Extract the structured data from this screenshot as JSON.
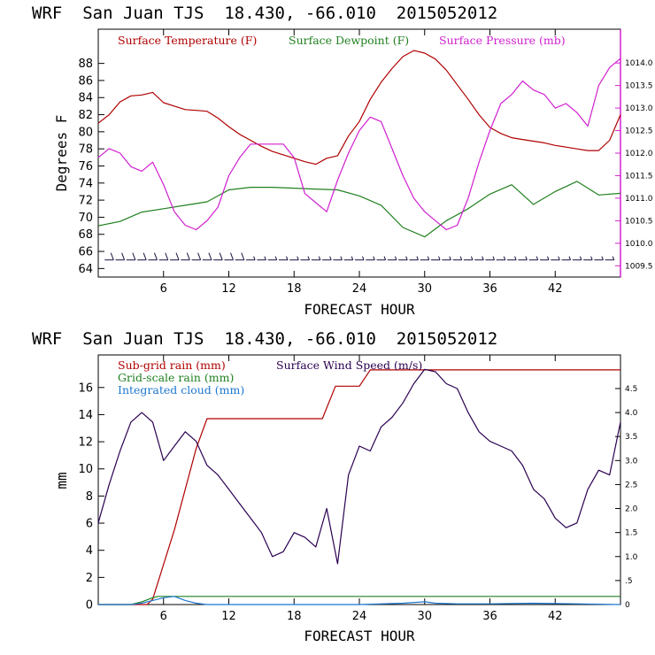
{
  "colors": {
    "temperature": "#b00000",
    "dewpoint": "#208020",
    "pressure": "#d020d0",
    "subgrid_rain": "#b00000",
    "grid_rain": "#208020",
    "cloud": "#1e78d0",
    "wind": "#2a0050",
    "barbs": "#1a1040",
    "axis": "#000000"
  },
  "chart_data": [
    {
      "type": "line",
      "title": "WRF  San Juan TJS  18.430, -66.010  2015052012",
      "xlabel": "FORECAST HOUR",
      "ylabel": "Degrees F",
      "xlim": [
        0,
        48
      ],
      "xticks": [
        6,
        12,
        18,
        24,
        30,
        36,
        42
      ],
      "xtick_labels": [
        "6",
        "12",
        "18",
        "24",
        "30",
        "36",
        "42"
      ],
      "ylim": [
        63,
        92
      ],
      "yticks": [
        64,
        66,
        68,
        70,
        72,
        74,
        76,
        78,
        80,
        82,
        84,
        86,
        88
      ],
      "ytick_labels": [
        "64",
        "66",
        "68",
        "70",
        "72",
        "74",
        "76",
        "78",
        "80",
        "82",
        "84",
        "86",
        "88"
      ],
      "y2lim": [
        1009.25,
        1014.75
      ],
      "y2ticks": [
        1009.5,
        1010.0,
        1010.5,
        1011.0,
        1011.5,
        1012.0,
        1012.5,
        1013.0,
        1013.5,
        1014.0
      ],
      "y2tick_labels": [
        "1009.5",
        "1010.0",
        "1010.5",
        "1011.0",
        "1011.5",
        "1012.0",
        "1012.5",
        "1013.0",
        "1013.5",
        "1014.0"
      ],
      "legend": [
        "Surface Temperature (F)",
        "Surface Dewpoint (F)",
        "Surface Pressure (mb)"
      ],
      "series": [
        {
          "name": "Surface Temperature (F)",
          "axis": "left",
          "x": [
            0,
            1,
            2,
            3,
            4,
            5,
            6,
            7,
            8,
            9,
            10,
            11,
            12,
            13,
            14,
            15,
            16,
            17,
            18,
            19,
            20,
            21,
            22,
            23,
            24,
            25,
            26,
            27,
            28,
            29,
            30,
            31,
            32,
            33,
            34,
            35,
            36,
            37,
            38,
            39,
            40,
            41,
            42,
            43,
            44,
            45,
            46,
            47,
            48
          ],
          "values": [
            81,
            82,
            83.5,
            84.2,
            84.3,
            84.6,
            83.4,
            83,
            82.6,
            82.5,
            82.4,
            81.6,
            80.6,
            79.7,
            79,
            78.3,
            77.7,
            77.3,
            76.9,
            76.5,
            76.2,
            76.9,
            77.2,
            79.5,
            81.2,
            83.8,
            85.8,
            87.4,
            88.8,
            89.5,
            89.2,
            88.5,
            87.2,
            85.5,
            83.8,
            82,
            80.5,
            79.8,
            79.3,
            79.1,
            78.9,
            78.7,
            78.4,
            78.2,
            78.0,
            77.8,
            77.8,
            79,
            82
          ]
        },
        {
          "name": "Surface Dewpoint (F)",
          "axis": "left",
          "x": [
            0,
            2,
            4,
            6,
            8,
            10,
            12,
            14,
            16,
            18,
            20,
            22,
            24,
            26,
            28,
            30,
            32,
            34,
            36,
            38,
            40,
            42,
            44,
            46,
            48
          ],
          "values": [
            69,
            69.5,
            70.6,
            71,
            71.4,
            71.8,
            73.2,
            73.5,
            73.5,
            73.4,
            73.3,
            73.2,
            72.5,
            71.4,
            68.8,
            67.7,
            69.6,
            71,
            72.7,
            73.8,
            71.5,
            73,
            74.2,
            72.6,
            72.8
          ]
        },
        {
          "name": "Surface Pressure (mb)",
          "axis": "right",
          "x": [
            0,
            1,
            2,
            3,
            4,
            5,
            6,
            7,
            8,
            9,
            10,
            11,
            12,
            13,
            14,
            15,
            16,
            17,
            18,
            19,
            20,
            21,
            22,
            23,
            24,
            25,
            26,
            27,
            28,
            29,
            30,
            31,
            32,
            33,
            34,
            35,
            36,
            37,
            38,
            39,
            40,
            41,
            42,
            43,
            44,
            45,
            46,
            47,
            48
          ],
          "values": [
            1011.9,
            1012.1,
            1012.0,
            1011.7,
            1011.6,
            1011.8,
            1011.3,
            1010.7,
            1010.4,
            1010.3,
            1010.5,
            1010.8,
            1011.5,
            1011.9,
            1012.2,
            1012.2,
            1012.2,
            1012.2,
            1011.9,
            1011.1,
            1010.9,
            1010.7,
            1011.4,
            1012.0,
            1012.5,
            1012.8,
            1012.7,
            1012.1,
            1011.5,
            1011.0,
            1010.7,
            1010.5,
            1010.3,
            1010.4,
            1011.0,
            1011.8,
            1012.5,
            1013.1,
            1013.3,
            1013.6,
            1013.4,
            1013.3,
            1013.0,
            1013.1,
            1012.9,
            1012.6,
            1013.5,
            1013.9,
            1014.1
          ]
        }
      ],
      "wind_barbs": {
        "x": [
          1,
          2,
          3,
          4,
          5,
          6,
          7,
          8,
          9,
          10,
          11,
          12,
          13,
          14,
          15,
          16,
          17,
          18,
          19,
          20,
          21,
          22,
          23,
          24,
          25,
          26,
          27,
          28,
          29,
          30,
          31,
          32,
          33,
          34,
          35,
          36,
          37,
          38,
          39,
          40,
          41,
          42,
          43,
          44,
          45,
          46,
          47
        ],
        "speed_kt": [
          10,
          10,
          10,
          10,
          10,
          10,
          10,
          10,
          10,
          10,
          10,
          10,
          10,
          5,
          5,
          5,
          5,
          5,
          5,
          5,
          5,
          5,
          5,
          5,
          5,
          5,
          5,
          5,
          5,
          5,
          5,
          5,
          5,
          5,
          5,
          5,
          5,
          5,
          5,
          5,
          5,
          5,
          5,
          5,
          5,
          5,
          5
        ],
        "direction": "E"
      }
    },
    {
      "type": "line",
      "title": "WRF  San Juan TJS  18.430, -66.010  2015052012",
      "xlabel": "FORECAST HOUR",
      "ylabel": "mm",
      "xlim": [
        0,
        48
      ],
      "xticks": [
        6,
        12,
        18,
        24,
        30,
        36,
        42
      ],
      "xtick_labels": [
        "6",
        "12",
        "18",
        "24",
        "30",
        "36",
        "42"
      ],
      "ylim": [
        0,
        18.4
      ],
      "yticks": [
        0,
        2,
        4,
        6,
        8,
        10,
        12,
        14,
        16
      ],
      "ytick_labels": [
        "0",
        "2",
        "4",
        "6",
        "8",
        "10",
        "12",
        "14",
        "16"
      ],
      "y2lim": [
        0,
        5.2
      ],
      "y2ticks": [
        0,
        0.5,
        1.0,
        1.5,
        2.0,
        2.5,
        3.0,
        3.5,
        4.0,
        4.5
      ],
      "y2tick_labels": [
        "0",
        ".5",
        "1.0",
        "1.5",
        "2.0",
        "2.5",
        "3.0",
        "3.5",
        "4.0",
        "4.5"
      ],
      "legend": [
        "Sub-grid rain (mm)",
        "Surface Wind Speed (m/s)",
        "Grid-scale rain (mm)",
        "Integrated cloud (mm)"
      ],
      "series": [
        {
          "name": "Sub-grid rain (mm)",
          "axis": "left",
          "x": [
            0,
            4.5,
            5,
            7,
            9,
            10,
            20.6,
            21.8,
            24,
            25,
            48
          ],
          "values": [
            0,
            0,
            0.4,
            5.5,
            11.5,
            13.7,
            13.7,
            16.1,
            16.1,
            17.3,
            17.3
          ]
        },
        {
          "name": "Surface Wind Speed (m/s)",
          "axis": "right",
          "x": [
            0,
            1,
            2,
            3,
            4,
            5,
            6,
            7,
            8,
            9,
            10,
            11,
            12,
            13,
            14,
            15,
            16,
            17,
            18,
            19,
            20,
            21,
            22,
            23,
            24,
            25,
            26,
            27,
            28,
            29,
            30,
            31,
            32,
            33,
            34,
            35,
            36,
            37,
            38,
            39,
            40,
            41,
            42,
            43,
            44,
            45,
            46,
            47,
            48
          ],
          "values": [
            1.7,
            2.5,
            3.2,
            3.8,
            4.0,
            3.8,
            3.0,
            3.3,
            3.6,
            3.4,
            2.9,
            2.7,
            2.4,
            2.1,
            1.8,
            1.5,
            1.0,
            1.1,
            1.5,
            1.4,
            1.2,
            2.0,
            0.85,
            2.7,
            3.3,
            3.2,
            3.7,
            3.9,
            4.2,
            4.6,
            4.9,
            4.85,
            4.6,
            4.5,
            4.0,
            3.6,
            3.4,
            3.3,
            3.2,
            2.9,
            2.4,
            2.2,
            1.8,
            1.6,
            1.7,
            2.4,
            2.8,
            2.7,
            3.8
          ]
        },
        {
          "name": "Grid-scale rain (mm)",
          "axis": "left",
          "x": [
            0,
            3,
            4,
            5,
            5.5,
            48
          ],
          "values": [
            0,
            0,
            0.2,
            0.5,
            0.6,
            0.6
          ]
        },
        {
          "name": "Integrated cloud (mm)",
          "axis": "left",
          "x": [
            0,
            3,
            4,
            5,
            6,
            7,
            8,
            9,
            10,
            12,
            18,
            24,
            28,
            30,
            31,
            33,
            36,
            40,
            44,
            48
          ],
          "values": [
            0,
            0,
            0.1,
            0.3,
            0.5,
            0.6,
            0.3,
            0.1,
            0,
            0,
            0,
            0,
            0.1,
            0.2,
            0.1,
            0.05,
            0.05,
            0.1,
            0.05,
            0
          ]
        }
      ]
    }
  ]
}
